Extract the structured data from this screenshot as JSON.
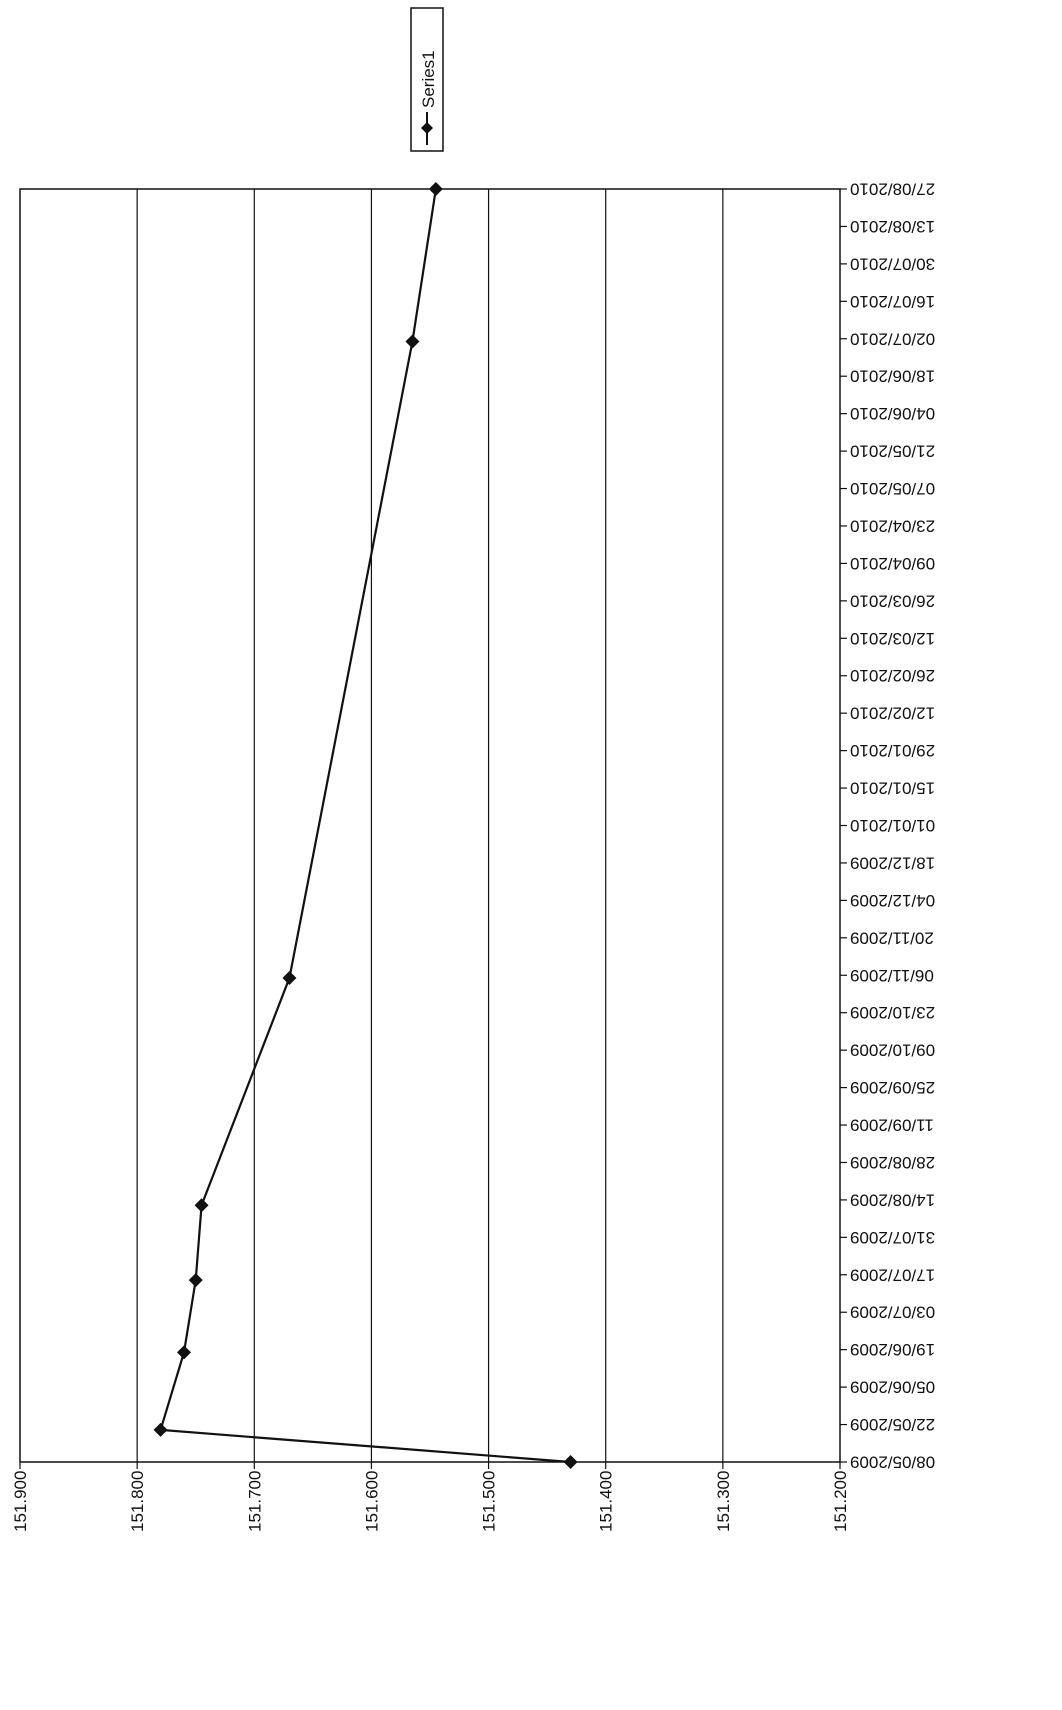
{
  "chart_data": {
    "type": "line",
    "title": "",
    "xlabel": "",
    "ylabel": "",
    "orientation": "rotated-90-cw",
    "grid": true,
    "legend_position": "top",
    "x_axis": {
      "type": "date",
      "min": "2009-05-08",
      "max": "2010-08-27",
      "tick_labels": [
        "08/05/2009",
        "22/05/2009",
        "05/06/2009",
        "19/06/2009",
        "03/07/2009",
        "17/07/2009",
        "31/07/2009",
        "14/08/2009",
        "28/08/2009",
        "11/09/2009",
        "25/09/2009",
        "09/10/2009",
        "23/10/2009",
        "06/11/2009",
        "20/11/2009",
        "04/12/2009",
        "18/12/2009",
        "01/01/2010",
        "15/01/2010",
        "29/01/2010",
        "12/02/2010",
        "26/02/2010",
        "12/03/2010",
        "26/03/2010",
        "09/04/2010",
        "23/04/2010",
        "07/05/2010",
        "21/05/2010",
        "04/06/2010",
        "18/06/2010",
        "02/07/2010",
        "16/07/2010",
        "30/07/2010",
        "13/08/2010",
        "27/08/2010"
      ]
    },
    "y_axis": {
      "min": 151.2,
      "max": 151.9,
      "tick_labels": [
        "151.900",
        "151.800",
        "151.700",
        "151.600",
        "151.500",
        "151.400",
        "151.300",
        "151.200"
      ]
    },
    "series": [
      {
        "name": "Series1",
        "color": "#111111",
        "marker": "diamond",
        "points": [
          {
            "x": "2009-05-08",
            "y": 151.43
          },
          {
            "x": "2009-05-20",
            "y": 151.78
          },
          {
            "x": "2009-06-18",
            "y": 151.76
          },
          {
            "x": "2009-07-15",
            "y": 151.75
          },
          {
            "x": "2009-08-12",
            "y": 151.745
          },
          {
            "x": "2009-11-05",
            "y": 151.67
          },
          {
            "x": "2010-07-01",
            "y": 151.565
          },
          {
            "x": "2010-08-27",
            "y": 151.545
          }
        ]
      }
    ]
  }
}
